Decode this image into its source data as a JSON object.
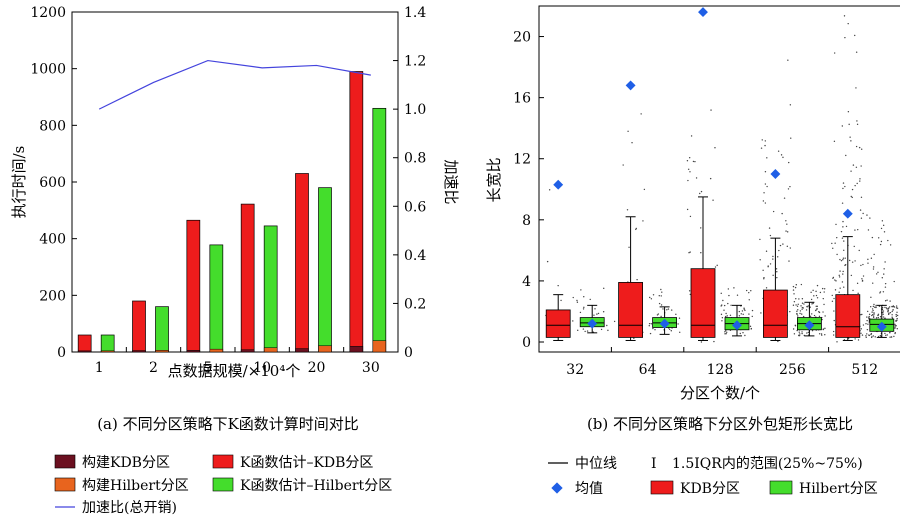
{
  "chart_data": [
    {
      "type": "bar",
      "subtitle": "(a) 不同分区策略下K函数计算时间对比",
      "xlabel": "点数据规模/×10⁴个",
      "ylabel": "执行时间/s",
      "y2label": "加速比",
      "categories": [
        "1",
        "2",
        "5",
        "10",
        "20",
        "30"
      ],
      "ylim": [
        0,
        1200
      ],
      "yticks": [
        "0",
        "200",
        "400",
        "600",
        "800",
        "1000",
        "1200"
      ],
      "y2lim": [
        0,
        1.4
      ],
      "y2ticks": [
        "0",
        "0.2",
        "0.4",
        "0.6",
        "0.8",
        "1.0",
        "1.2",
        "1.4"
      ],
      "grid": false,
      "legend_position": "bottom",
      "series": [
        {
          "name": "构建KDB分区",
          "color": "#6b1020",
          "values": [
            4,
            5,
            6,
            8,
            12,
            20
          ],
          "role": "bar-kdb-base"
        },
        {
          "name": "构建Hilbert分区",
          "color": "#e8641e",
          "values": [
            4,
            6,
            10,
            15,
            22,
            40
          ],
          "role": "bar-hil-base"
        },
        {
          "name": "K函数估计–KDB分区",
          "color": "#ee1c1c",
          "values": [
            60,
            180,
            465,
            522,
            630,
            990
          ],
          "role": "bar-kdb-total"
        },
        {
          "name": "K函数估计–Hilbert分区",
          "color": "#44dd2c",
          "values": [
            60,
            160,
            378,
            445,
            580,
            860
          ],
          "role": "bar-hil-total"
        },
        {
          "name": "加速比(总开销)",
          "color": "#4444dd",
          "values": [
            1.0,
            1.11,
            1.2,
            1.17,
            1.18,
            1.14
          ],
          "role": "line-speedup"
        }
      ]
    },
    {
      "type": "box",
      "subtitle": "(b) 不同分区策略下分区外包矩形长宽比",
      "xlabel": "分区个数/个",
      "ylabel": "长宽比",
      "categories": [
        "32",
        "64",
        "128",
        "256",
        "512"
      ],
      "ylim": [
        0,
        22
      ],
      "yticks": [
        "0",
        "4",
        "8",
        "12",
        "16",
        "20"
      ],
      "legend": {
        "median": "中位线",
        "range_symbol": "I",
        "range": "1.5IQR内的范围(25%~75%)",
        "mean": "均值",
        "kdb": "KDB分区",
        "hilbert": "Hilbert分区"
      },
      "series": [
        {
          "name": "KDB分区",
          "color": "#ee1c1c",
          "boxes": [
            {
              "q1": 0.3,
              "median": 1.1,
              "q3": 2.1,
              "lo": 0.1,
              "hi": 3.1,
              "mean": 10.3
            },
            {
              "q1": 0.3,
              "median": 1.1,
              "q3": 3.9,
              "lo": 0.1,
              "hi": 8.2,
              "mean": 16.8
            },
            {
              "q1": 0.3,
              "median": 1.1,
              "q3": 4.8,
              "lo": 0.1,
              "hi": 9.5,
              "mean": 21.6
            },
            {
              "q1": 0.3,
              "median": 1.1,
              "q3": 3.4,
              "lo": 0.1,
              "hi": 6.8,
              "mean": 11.0
            },
            {
              "q1": 0.3,
              "median": 1.0,
              "q3": 3.1,
              "lo": 0.1,
              "hi": 6.9,
              "mean": 8.4
            }
          ]
        },
        {
          "name": "Hilbert分区",
          "color": "#44dd2c",
          "boxes": [
            {
              "q1": 1.0,
              "median": 1.25,
              "q3": 1.6,
              "lo": 0.6,
              "hi": 2.4,
              "mean": 1.2
            },
            {
              "q1": 0.95,
              "median": 1.25,
              "q3": 1.6,
              "lo": 0.5,
              "hi": 2.3,
              "mean": 1.2
            },
            {
              "q1": 0.8,
              "median": 1.2,
              "q3": 1.6,
              "lo": 0.4,
              "hi": 2.4,
              "mean": 1.1
            },
            {
              "q1": 0.8,
              "median": 1.2,
              "q3": 1.6,
              "lo": 0.4,
              "hi": 2.6,
              "mean": 1.1
            },
            {
              "q1": 0.7,
              "median": 1.15,
              "q3": 1.5,
              "lo": 0.3,
              "hi": 2.4,
              "mean": 1.0
            }
          ]
        }
      ]
    }
  ]
}
